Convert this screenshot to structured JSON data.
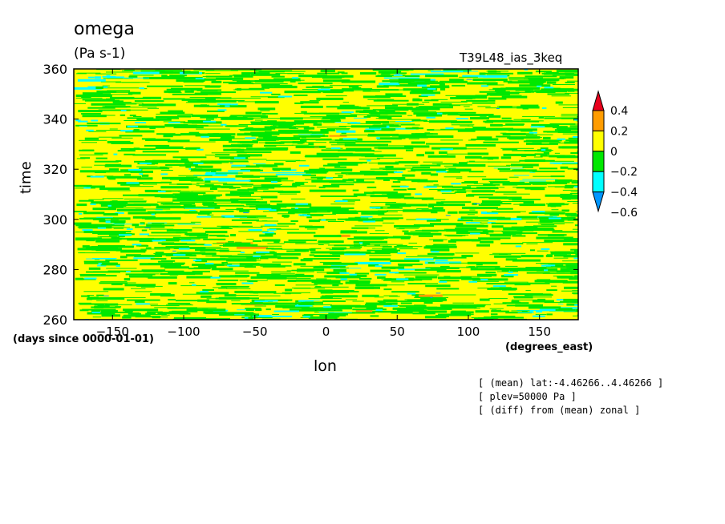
{
  "header": {
    "title": "omega",
    "units": "(Pa s-1)",
    "run_id": "T39L48_ias_3keq"
  },
  "axes": {
    "xlabel": "lon",
    "xunit": "(degrees_east)",
    "ylabel": "time",
    "yunit": "(days since 0000-01-01)"
  },
  "notes": [
    "[ (mean) lat:-4.46266..4.46266 ]",
    "[ plev=50000 Pa ]",
    "[ (diff) from (mean) zonal ]"
  ],
  "chart_data": {
    "type": "heatmap",
    "title": "omega",
    "xlabel": "lon",
    "ylabel": "time",
    "xlim": [
      -177.2,
      177.2
    ],
    "ylim": [
      260,
      360
    ],
    "xticks": [
      -150,
      -100,
      -50,
      0,
      50,
      100,
      150
    ],
    "yticks": [
      260,
      280,
      300,
      320,
      340,
      360
    ],
    "colorbar": {
      "levels": [
        0.4,
        0.2,
        0,
        -0.2,
        -0.4,
        -0.6
      ],
      "colors": [
        "#e8001c",
        "#ff9c00",
        "#ffff00",
        "#00e800",
        "#00ffff",
        "#0096ff"
      ]
    }
  }
}
